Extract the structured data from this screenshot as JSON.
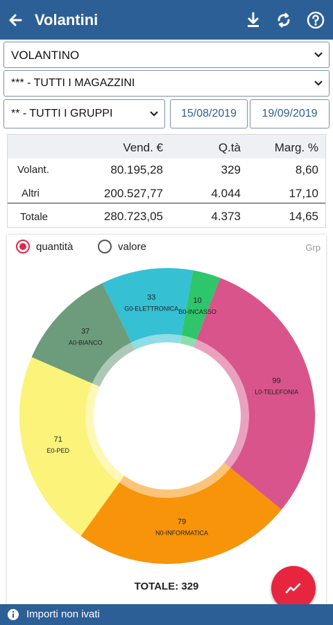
{
  "appbar": {
    "title": "Volantini",
    "back_icon": "arrow-left-icon",
    "actions": [
      "download-icon",
      "sync-icon",
      "help-icon"
    ]
  },
  "filters": {
    "flyer": "VOLANTINO",
    "warehouse": "*** - TUTTI I MAGAZZINI",
    "group": "** - TUTTI I GRUPPI",
    "date_from": "15/08/2019",
    "date_to": "19/09/2019"
  },
  "summary": {
    "headers": [
      "Vend. €",
      "Q.tà",
      "Marg. %"
    ],
    "rows": [
      {
        "label": "Volant.",
        "sales": "80.195,28",
        "qty": "329",
        "margin": "8,60"
      },
      {
        "label": "Altri",
        "sales": "200.527,77",
        "qty": "4.044",
        "margin": "17,10"
      },
      {
        "label": "Totale",
        "sales": "280.723,05",
        "qty": "4.373",
        "margin": "14,65"
      }
    ]
  },
  "chart_options": {
    "quantity_label": "quantità",
    "value_label": "valore",
    "selected": "quantity",
    "grp_label": "Grp"
  },
  "chart_data": {
    "type": "pie",
    "donut": true,
    "slices": [
      {
        "label": "L0-TELEFONIA",
        "value": 99,
        "color": "#d9548a"
      },
      {
        "label": "N0-INFORMATICA",
        "value": 79,
        "color": "#f7940a"
      },
      {
        "label": "E0-PED",
        "value": 71,
        "color": "#fbf37a"
      },
      {
        "label": "A0-BIANCO",
        "value": 37,
        "color": "#6c9c7c"
      },
      {
        "label": "G0-ELETTRONICA",
        "value": 33,
        "color": "#35c0d4"
      },
      {
        "label": "B0-INCASSO",
        "value": 10,
        "color": "#2fc56a"
      }
    ],
    "total_label": "TOTALE: 329"
  },
  "fab": {
    "icon": "trending-icon"
  },
  "footer": {
    "text": "Importi non ivati",
    "icon": "info-icon"
  }
}
